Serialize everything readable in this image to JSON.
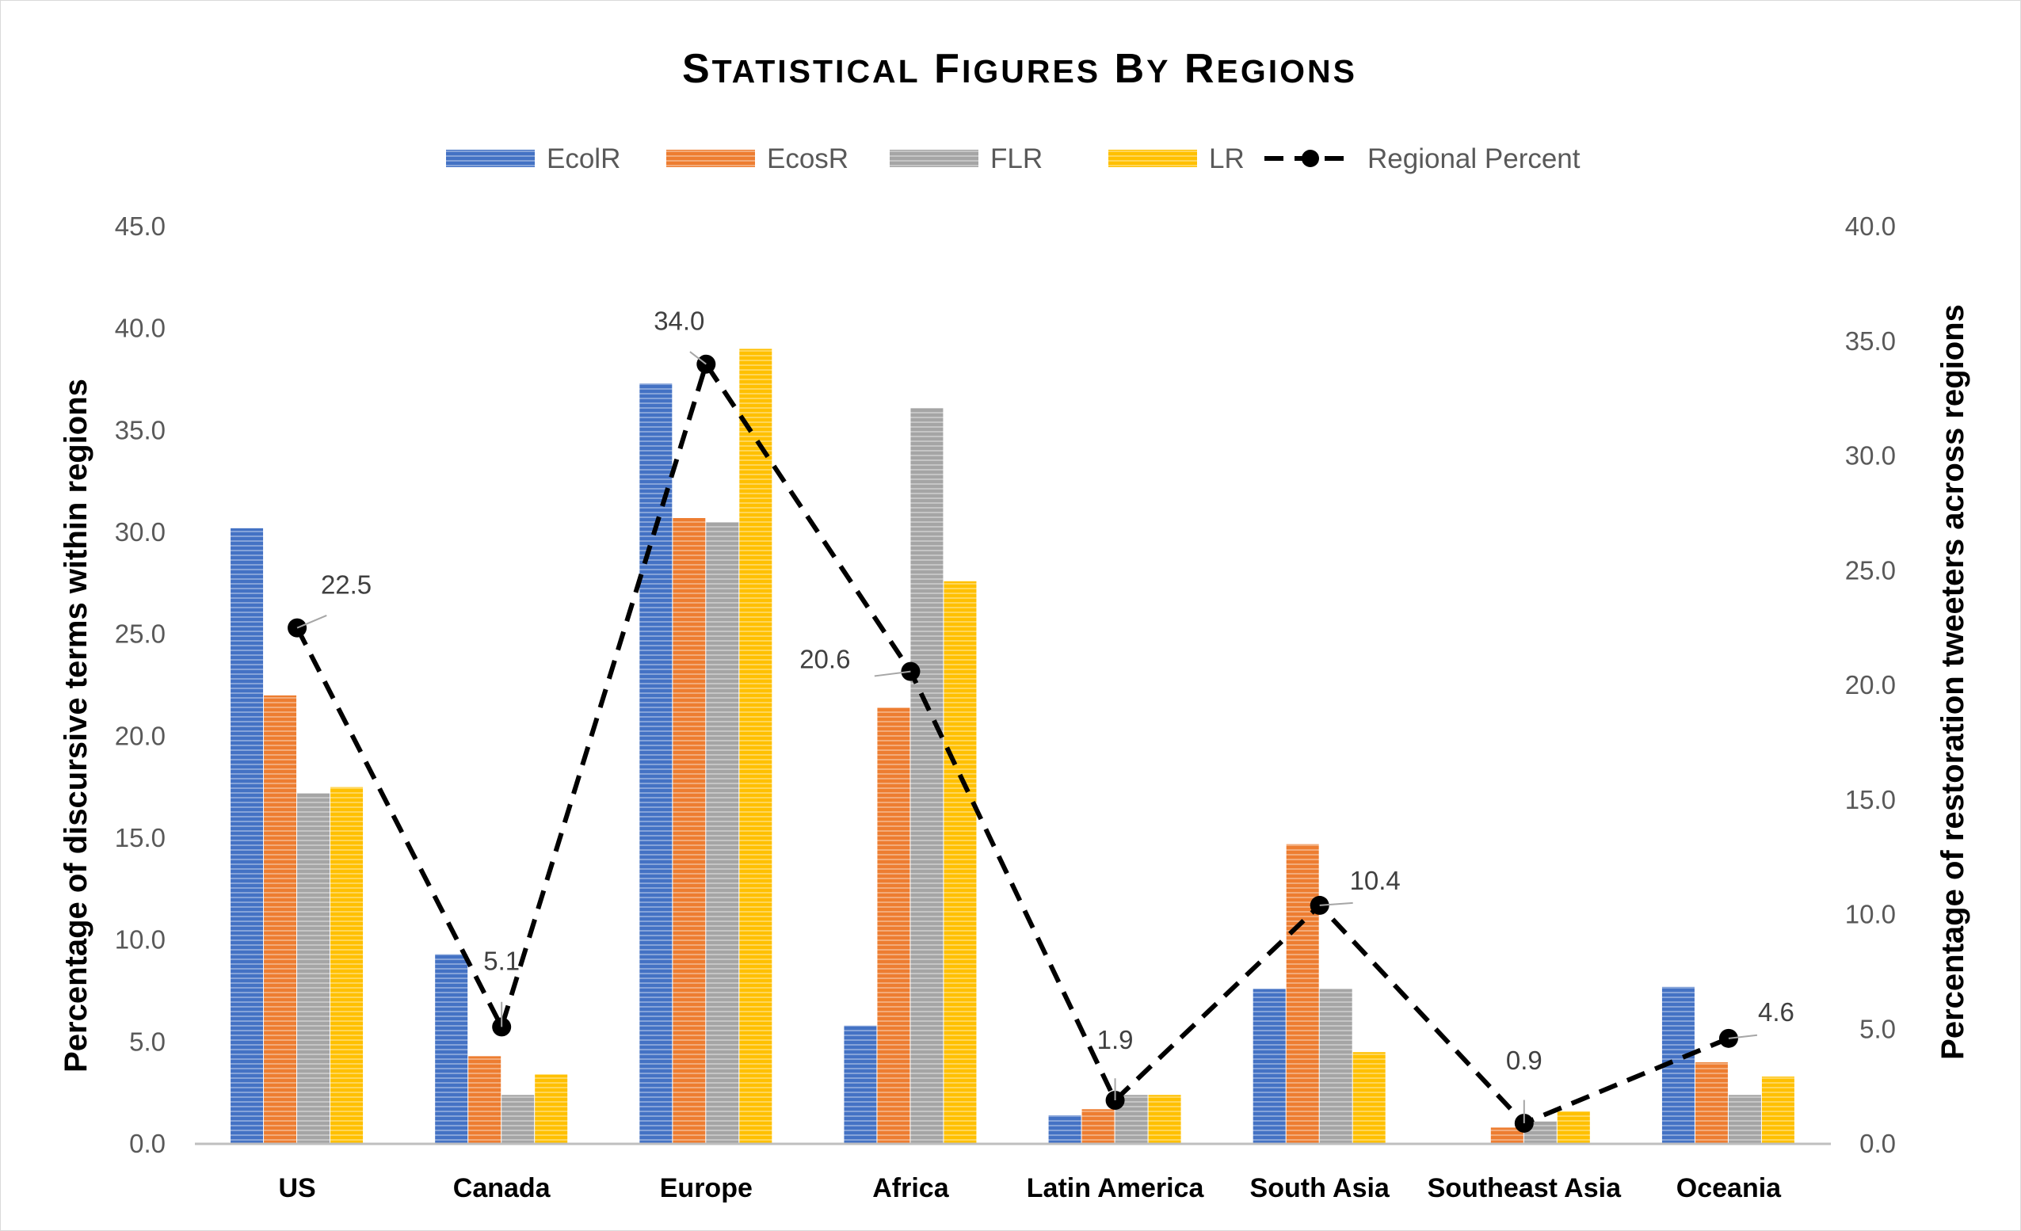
{
  "chart_data": {
    "type": "bar",
    "title": "Statistical Figures by Regions",
    "categories": [
      "US",
      "Canada",
      "Europe",
      "Africa",
      "Latin America",
      "South Asia",
      "Southeast Asia",
      "Oceania"
    ],
    "series": [
      {
        "name": "EcolR",
        "color": "#4472C4",
        "axis": "left",
        "values": [
          30.2,
          9.3,
          37.3,
          5.8,
          1.4,
          7.6,
          0.0,
          7.7
        ]
      },
      {
        "name": "EcosR",
        "color": "#ED7D31",
        "axis": "left",
        "values": [
          22.0,
          4.3,
          30.7,
          21.4,
          1.7,
          14.7,
          0.8,
          4.0
        ]
      },
      {
        "name": "FLR",
        "color": "#A5A5A5",
        "axis": "left",
        "values": [
          17.2,
          2.4,
          30.5,
          36.1,
          2.4,
          7.6,
          1.1,
          2.4
        ]
      },
      {
        "name": "LR",
        "color": "#FFC000",
        "axis": "left",
        "values": [
          17.5,
          3.4,
          39.0,
          27.6,
          2.4,
          4.5,
          1.6,
          3.3
        ]
      },
      {
        "name": "Regional Percent",
        "color": "#000000",
        "axis": "right",
        "line": true,
        "values": [
          22.5,
          5.1,
          34.0,
          20.6,
          1.9,
          10.4,
          0.9,
          4.6
        ],
        "data_labels": [
          "22.5",
          "5.1",
          "34.0",
          "20.6",
          "1.9",
          "10.4",
          "0.9",
          "4.6"
        ]
      }
    ],
    "ylabel": "Percentage of discursive terms within regions",
    "ylim": [
      0,
      45
    ],
    "yticks": [
      "0.0",
      "5.0",
      "10.0",
      "15.0",
      "20.0",
      "25.0",
      "30.0",
      "35.0",
      "40.0",
      "45.0"
    ],
    "y2label": "Percentage of restoration tweeters across regions",
    "y2lim": [
      0,
      40
    ],
    "y2ticks": [
      "0.0",
      "5.0",
      "10.0",
      "15.0",
      "20.0",
      "25.0",
      "30.0",
      "35.0",
      "40.0"
    ],
    "legend": "top",
    "grid": false
  }
}
